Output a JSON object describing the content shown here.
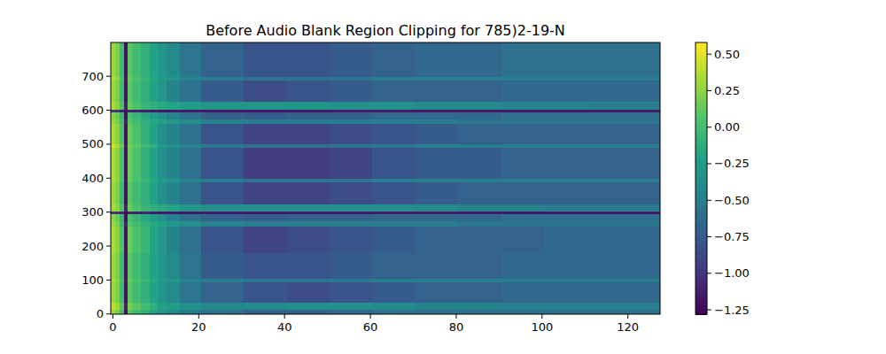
{
  "chart_data": {
    "type": "heatmap",
    "title": "Before Audio Blank Region Clipping for 785)2-19-N",
    "xlim": [
      -0.5,
      127.5
    ],
    "ylim": [
      -0.5,
      799.5
    ],
    "xticks": [
      0,
      20,
      40,
      60,
      80,
      100,
      120
    ],
    "yticks": [
      0,
      100,
      200,
      300,
      400,
      500,
      600,
      700
    ],
    "x_bins": [
      -0.5,
      0.5,
      1.5,
      2.5,
      3.5,
      4.5,
      6.5,
      8.5,
      10.5,
      12.5,
      15.5,
      20.5,
      30.5,
      40.5,
      50.5,
      60.5,
      70.5,
      80.5,
      90.5,
      100.5,
      110.5,
      127.5
    ],
    "y_bins": [
      -0.5,
      15,
      35,
      95,
      105,
      180,
      260,
      275,
      296,
      304,
      325,
      390,
      400,
      490,
      500,
      560,
      575,
      596,
      604,
      625,
      690,
      700,
      799.5
    ],
    "cells": [
      [
        0.3,
        0.2,
        0.0,
        -1.2,
        0.1,
        0.0,
        -0.1,
        -0.2,
        -0.3,
        -0.4,
        -0.5,
        -0.6,
        -0.7,
        -0.7,
        -0.65,
        -0.6,
        -0.6,
        -0.6,
        -0.6,
        -0.6,
        -0.6
      ],
      [
        0.4,
        0.3,
        0.1,
        -1.1,
        0.2,
        0.1,
        0.0,
        -0.1,
        -0.2,
        -0.25,
        -0.35,
        -0.4,
        -0.4,
        -0.35,
        -0.35,
        -0.4,
        -0.45,
        -0.45,
        -0.5,
        -0.5,
        -0.5
      ],
      [
        0.3,
        0.2,
        0.0,
        -1.2,
        0.1,
        0.0,
        -0.1,
        -0.2,
        -0.3,
        -0.4,
        -0.55,
        -0.7,
        -0.8,
        -0.85,
        -0.8,
        -0.75,
        -0.7,
        -0.7,
        -0.65,
        -0.65,
        -0.65
      ],
      [
        0.35,
        0.25,
        0.05,
        -1.15,
        0.15,
        0.05,
        -0.05,
        -0.15,
        -0.25,
        -0.3,
        -0.45,
        -0.5,
        -0.55,
        -0.55,
        -0.55,
        -0.5,
        -0.5,
        -0.5,
        -0.5,
        -0.5,
        -0.5
      ],
      [
        0.3,
        0.2,
        0.0,
        -1.2,
        0.1,
        0.0,
        -0.1,
        -0.2,
        -0.3,
        -0.4,
        -0.55,
        -0.75,
        -0.8,
        -0.8,
        -0.75,
        -0.7,
        -0.7,
        -0.7,
        -0.65,
        -0.65,
        -0.65
      ],
      [
        0.35,
        0.25,
        0.05,
        -1.2,
        0.15,
        0.05,
        -0.05,
        -0.2,
        -0.3,
        -0.45,
        -0.6,
        -0.8,
        -0.9,
        -0.85,
        -0.8,
        -0.75,
        -0.7,
        -0.7,
        -0.7,
        -0.65,
        -0.65
      ],
      [
        0.3,
        0.2,
        0.0,
        -1.1,
        0.1,
        0.0,
        -0.1,
        -0.15,
        -0.2,
        -0.3,
        -0.35,
        -0.45,
        -0.5,
        -0.5,
        -0.5,
        -0.5,
        -0.5,
        -0.55,
        -0.55,
        -0.55,
        -0.55
      ],
      [
        0.25,
        0.15,
        -0.05,
        -1.2,
        0.05,
        -0.05,
        -0.15,
        -0.25,
        -0.35,
        -0.45,
        -0.6,
        -0.7,
        -0.75,
        -0.7,
        -0.7,
        -0.65,
        -0.65,
        -0.65,
        -0.6,
        -0.6,
        -0.6
      ],
      [
        -1.0,
        -1.05,
        -1.1,
        -1.25,
        -1.1,
        -1.1,
        -1.1,
        -1.15,
        -1.15,
        -1.15,
        -1.15,
        -1.15,
        -1.15,
        -1.15,
        -1.15,
        -1.15,
        -1.15,
        -1.15,
        -1.15,
        -1.15,
        -1.15
      ],
      [
        0.35,
        0.25,
        0.05,
        -1.1,
        0.15,
        0.05,
        -0.05,
        -0.1,
        -0.15,
        -0.2,
        -0.3,
        -0.35,
        -0.35,
        -0.35,
        -0.35,
        -0.35,
        -0.4,
        -0.45,
        -0.45,
        -0.5,
        -0.5
      ],
      [
        0.3,
        0.2,
        0.0,
        -1.2,
        0.1,
        0.0,
        -0.1,
        -0.2,
        -0.35,
        -0.45,
        -0.6,
        -0.8,
        -0.9,
        -0.9,
        -0.85,
        -0.8,
        -0.75,
        -0.7,
        -0.7,
        -0.7,
        -0.7
      ],
      [
        0.35,
        0.25,
        0.05,
        -1.15,
        0.15,
        0.05,
        -0.05,
        -0.15,
        -0.25,
        -0.3,
        -0.45,
        -0.5,
        -0.55,
        -0.55,
        -0.55,
        -0.5,
        -0.5,
        -0.5,
        -0.5,
        -0.5,
        -0.5
      ],
      [
        0.35,
        0.25,
        0.05,
        -1.2,
        0.15,
        0.05,
        -0.1,
        -0.2,
        -0.35,
        -0.45,
        -0.6,
        -0.8,
        -0.95,
        -0.95,
        -0.9,
        -0.8,
        -0.75,
        -0.75,
        -0.7,
        -0.7,
        -0.7
      ],
      [
        0.45,
        0.35,
        0.15,
        -1.15,
        0.2,
        0.1,
        0.0,
        -0.1,
        -0.25,
        -0.35,
        -0.45,
        -0.55,
        -0.6,
        -0.6,
        -0.55,
        -0.55,
        -0.5,
        -0.5,
        -0.5,
        -0.5,
        -0.5
      ],
      [
        0.35,
        0.25,
        0.05,
        -1.2,
        0.15,
        0.05,
        -0.1,
        -0.2,
        -0.35,
        -0.45,
        -0.6,
        -0.8,
        -0.9,
        -0.9,
        -0.85,
        -0.8,
        -0.75,
        -0.7,
        -0.7,
        -0.7,
        -0.7
      ],
      [
        0.3,
        0.2,
        0.0,
        -1.1,
        0.1,
        0.0,
        -0.1,
        -0.15,
        -0.2,
        -0.3,
        -0.35,
        -0.45,
        -0.5,
        -0.5,
        -0.5,
        -0.5,
        -0.5,
        -0.55,
        -0.55,
        -0.55,
        -0.55
      ],
      [
        0.25,
        0.15,
        -0.05,
        -1.2,
        0.05,
        -0.05,
        -0.15,
        -0.25,
        -0.35,
        -0.45,
        -0.6,
        -0.7,
        -0.75,
        -0.7,
        -0.7,
        -0.65,
        -0.65,
        -0.65,
        -0.6,
        -0.6,
        -0.6
      ],
      [
        -1.0,
        -1.05,
        -1.1,
        -1.25,
        -1.1,
        -1.1,
        -1.1,
        -1.15,
        -1.15,
        -1.15,
        -1.15,
        -1.15,
        -1.15,
        -1.15,
        -1.15,
        -1.15,
        -1.15,
        -1.15,
        -1.15,
        -1.15,
        -1.15
      ],
      [
        0.35,
        0.25,
        0.05,
        -1.1,
        0.15,
        0.05,
        -0.05,
        -0.1,
        -0.15,
        -0.2,
        -0.25,
        -0.3,
        -0.3,
        -0.3,
        -0.35,
        -0.35,
        -0.4,
        -0.4,
        -0.45,
        -0.45,
        -0.5
      ],
      [
        0.3,
        0.2,
        0.0,
        -1.2,
        0.1,
        0.0,
        -0.1,
        -0.2,
        -0.3,
        -0.45,
        -0.6,
        -0.75,
        -0.85,
        -0.8,
        -0.75,
        -0.7,
        -0.7,
        -0.7,
        -0.65,
        -0.65,
        -0.65
      ],
      [
        0.35,
        0.25,
        0.05,
        -1.15,
        0.15,
        0.05,
        -0.05,
        -0.15,
        -0.25,
        -0.3,
        -0.45,
        -0.5,
        -0.55,
        -0.55,
        -0.55,
        -0.5,
        -0.5,
        -0.5,
        -0.5,
        -0.5,
        -0.5
      ],
      [
        0.3,
        0.2,
        0.0,
        -1.2,
        0.1,
        0.0,
        -0.1,
        -0.2,
        -0.3,
        -0.4,
        -0.55,
        -0.7,
        -0.8,
        -0.8,
        -0.75,
        -0.7,
        -0.65,
        -0.65,
        -0.6,
        -0.6,
        -0.6
      ]
    ],
    "color_range": [
      -1.28,
      0.58
    ],
    "color_ticks": [
      {
        "value": 0.5,
        "label": "0.50"
      },
      {
        "value": 0.25,
        "label": "0.25"
      },
      {
        "value": 0.0,
        "label": "0.00"
      },
      {
        "value": -0.25,
        "label": "−0.25"
      },
      {
        "value": -0.5,
        "label": "−0.50"
      },
      {
        "value": -0.75,
        "label": "−0.75"
      },
      {
        "value": -1.0,
        "label": "−1.00"
      },
      {
        "value": -1.25,
        "label": "−1.25"
      }
    ]
  }
}
